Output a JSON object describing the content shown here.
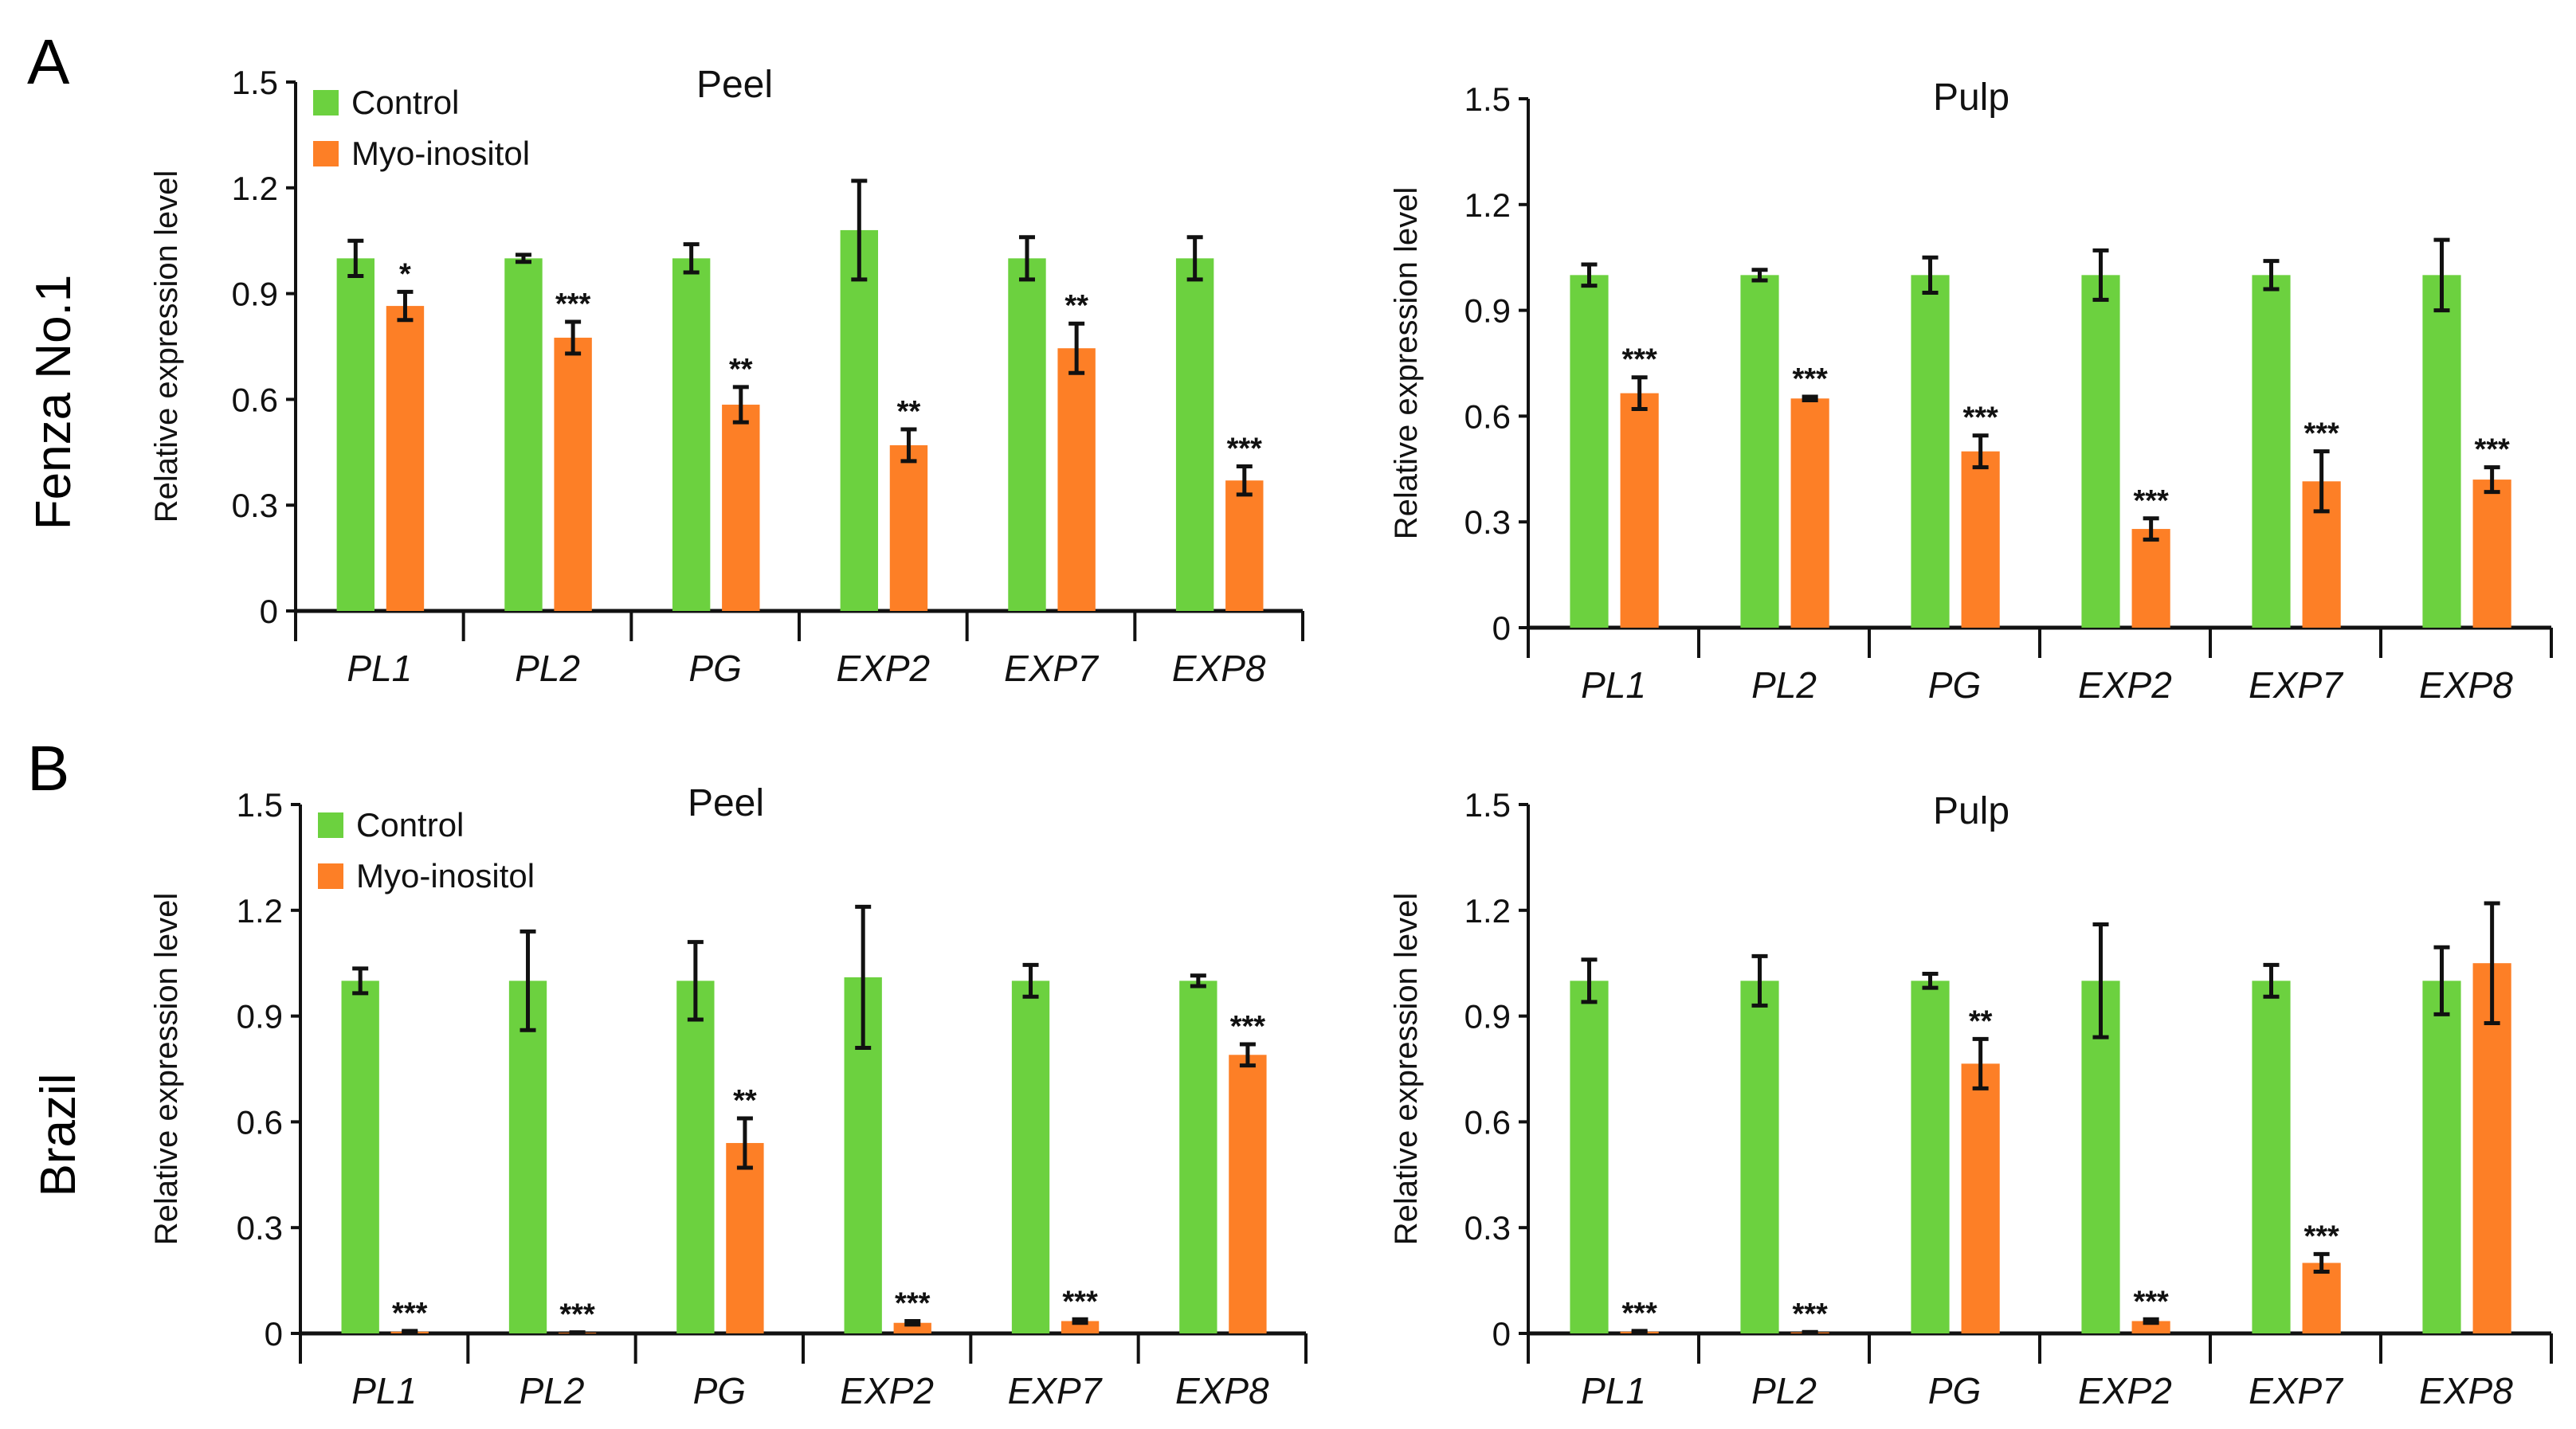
{
  "colors": {
    "control": "#6cd13f",
    "myo": "#fd7f26",
    "axis": "#111111"
  },
  "legend": {
    "control": "Control",
    "myo": "Myo-inositol"
  },
  "rows": [
    {
      "letter": "A",
      "label": "Fenza No.1"
    },
    {
      "letter": "B",
      "label": "Brazil"
    }
  ],
  "chart_data": [
    {
      "type": "bar",
      "row": "A",
      "title": "Peel",
      "ylabel": "Relative expression level",
      "xlabel": "",
      "ylim": [
        0,
        1.5
      ],
      "yticks": [
        "0",
        "0.3",
        "0.6",
        "0.9",
        "1.2",
        "1.5"
      ],
      "legend": true,
      "legend_position": "top-left",
      "categories": [
        "PL1",
        "PL2",
        "PG",
        "EXP2",
        "EXP7",
        "EXP8"
      ],
      "series": [
        {
          "name": "Control",
          "values": [
            1.0,
            1.0,
            1.0,
            1.08,
            1.0,
            1.0
          ],
          "errors": [
            0.05,
            0.01,
            0.04,
            0.14,
            0.06,
            0.06
          ]
        },
        {
          "name": "Myo-inositol",
          "values": [
            0.865,
            0.775,
            0.585,
            0.47,
            0.745,
            0.37
          ],
          "errors": [
            0.04,
            0.045,
            0.05,
            0.045,
            0.07,
            0.04
          ],
          "significance": [
            "*",
            "***",
            "**",
            "**",
            "**",
            "***"
          ]
        }
      ]
    },
    {
      "type": "bar",
      "row": "A",
      "title": "Pulp",
      "ylabel": "Relative expression level",
      "xlabel": "",
      "ylim": [
        0,
        1.5
      ],
      "yticks": [
        "0",
        "0.3",
        "0.6",
        "0.9",
        "1.2",
        "1.5"
      ],
      "legend": false,
      "categories": [
        "PL1",
        "PL2",
        "PG",
        "EXP2",
        "EXP7",
        "EXP8"
      ],
      "series": [
        {
          "name": "Control",
          "values": [
            1.0,
            1.0,
            1.0,
            1.0,
            1.0,
            1.0
          ],
          "errors": [
            0.03,
            0.015,
            0.05,
            0.07,
            0.04,
            0.1
          ]
        },
        {
          "name": "Myo-inositol",
          "values": [
            0.665,
            0.65,
            0.5,
            0.28,
            0.415,
            0.42
          ],
          "errors": [
            0.045,
            0.005,
            0.045,
            0.03,
            0.085,
            0.035
          ],
          "significance": [
            "***",
            "***",
            "***",
            "***",
            "***",
            "***"
          ]
        }
      ]
    },
    {
      "type": "bar",
      "row": "B",
      "title": "Peel",
      "ylabel": "Relative expression level",
      "xlabel": "",
      "ylim": [
        0,
        1.5
      ],
      "yticks": [
        "0",
        "0.3",
        "0.6",
        "0.9",
        "1.2",
        "1.5"
      ],
      "legend": true,
      "legend_position": "top-left",
      "categories": [
        "PL1",
        "PL2",
        "PG",
        "EXP2",
        "EXP7",
        "EXP8"
      ],
      "series": [
        {
          "name": "Control",
          "values": [
            1.0,
            1.0,
            1.0,
            1.01,
            1.0,
            1.0
          ],
          "errors": [
            0.035,
            0.14,
            0.11,
            0.2,
            0.045,
            0.015
          ]
        },
        {
          "name": "Myo-inositol",
          "values": [
            0.005,
            0.002,
            0.54,
            0.03,
            0.035,
            0.79
          ],
          "errors": [
            0.002,
            0.001,
            0.07,
            0.005,
            0.005,
            0.03
          ],
          "significance": [
            "***",
            "***",
            "**",
            "***",
            "***",
            "***"
          ]
        }
      ]
    },
    {
      "type": "bar",
      "row": "B",
      "title": "Pulp",
      "ylabel": "Relative expression level",
      "xlabel": "",
      "ylim": [
        0,
        1.5
      ],
      "yticks": [
        "0",
        "0.3",
        "0.6",
        "0.9",
        "1.2",
        "1.5"
      ],
      "legend": false,
      "categories": [
        "PL1",
        "PL2",
        "PG",
        "EXP2",
        "EXP7",
        "EXP8"
      ],
      "series": [
        {
          "name": "Control",
          "values": [
            1.0,
            1.0,
            1.0,
            1.0,
            1.0,
            1.0
          ],
          "errors": [
            0.06,
            0.07,
            0.02,
            0.16,
            0.045,
            0.095
          ]
        },
        {
          "name": "Myo-inositol",
          "values": [
            0.005,
            0.003,
            0.765,
            0.035,
            0.2,
            1.05
          ],
          "errors": [
            0.002,
            0.001,
            0.07,
            0.005,
            0.025,
            0.17
          ],
          "significance": [
            "***",
            "***",
            "**",
            "***",
            "***",
            ""
          ]
        }
      ]
    }
  ]
}
